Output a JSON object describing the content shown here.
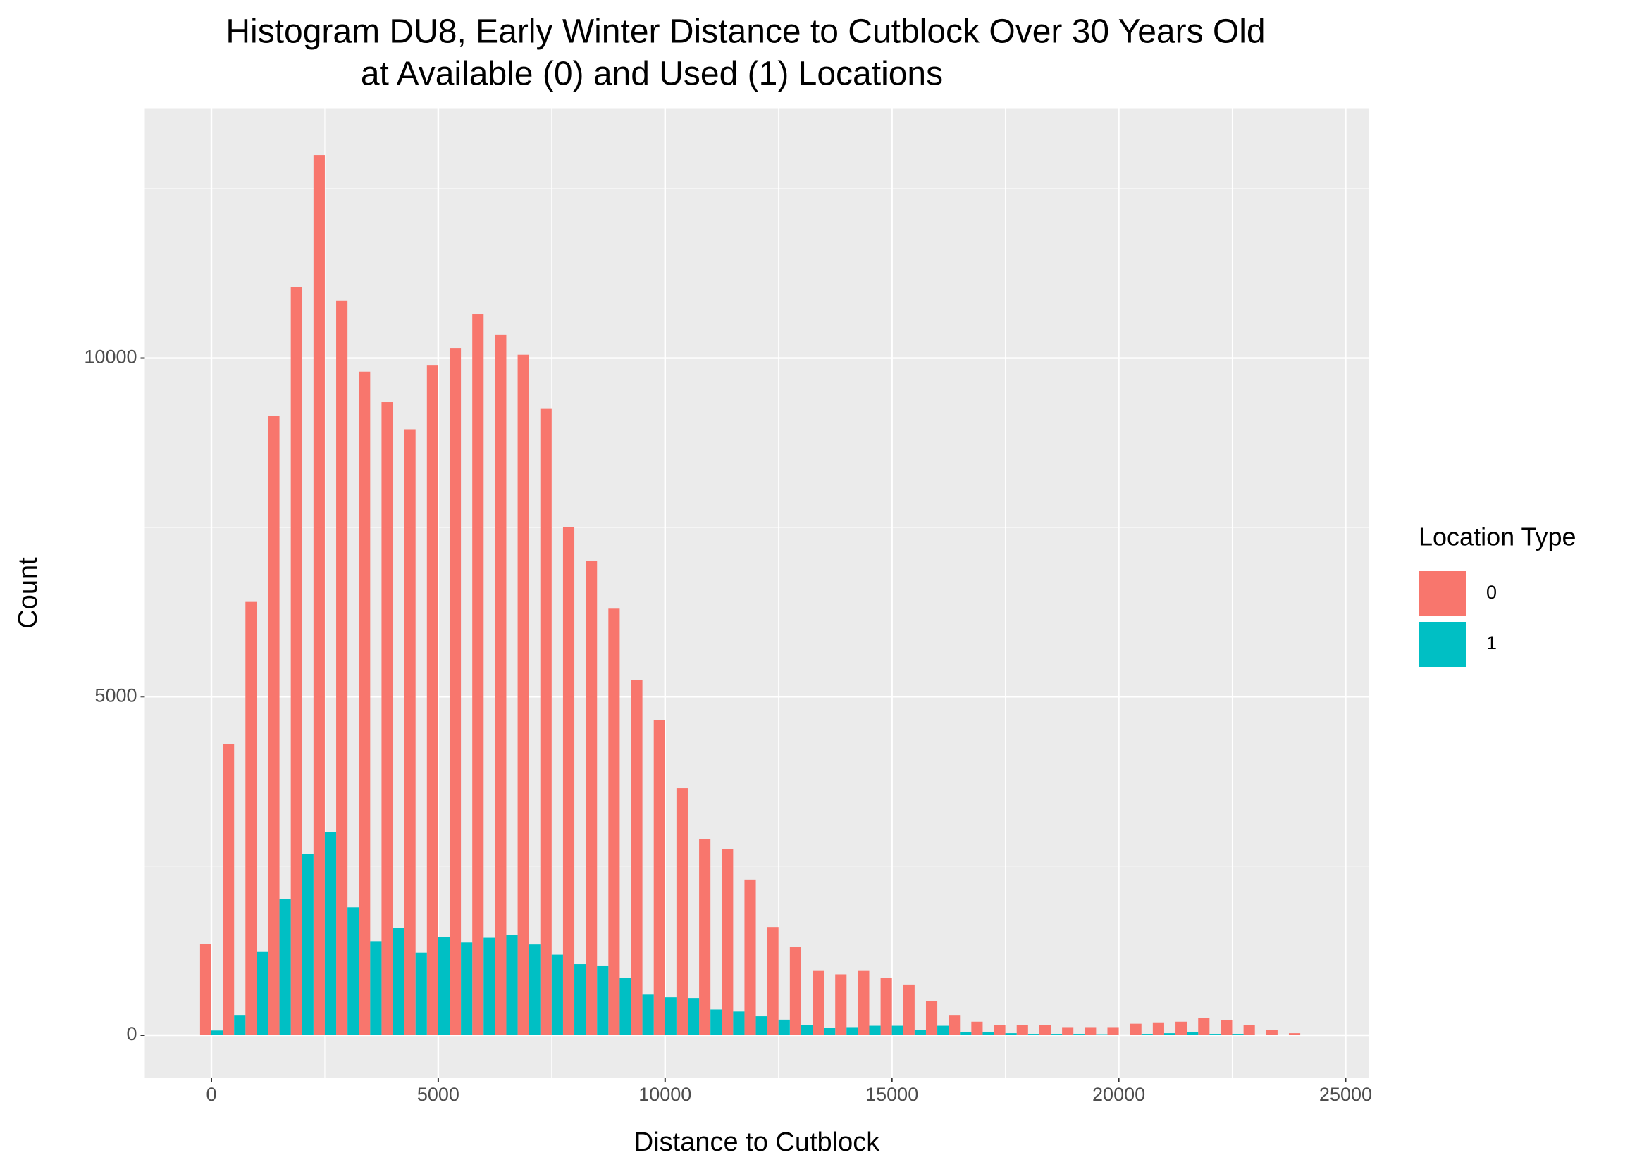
{
  "chart_data": {
    "type": "histogram",
    "title": [
      "Histogram DU8, Early Winter Distance to Cutblock Over 30 Years Old",
      "at Available (0) and Used (1) Locations"
    ],
    "x_label": "Distance to Cutblock",
    "y_label": "Count",
    "legend_title": "Location Type",
    "legend_position": "right",
    "grid": true,
    "bins": [
      -250,
      250,
      750,
      1250,
      1750,
      2250,
      2750,
      3250,
      3750,
      4250,
      4750,
      5250,
      5750,
      6250,
      6750,
      7250,
      7750,
      8250,
      8750,
      9250,
      9750,
      10250,
      10750,
      11250,
      11750,
      12250,
      12750,
      13250,
      13750,
      14250,
      14750,
      15250,
      15750,
      16250,
      16750,
      17250,
      17750,
      18250,
      18750,
      19250,
      19750,
      20250,
      20750,
      21250,
      21750,
      22250,
      22750,
      23250,
      23750,
      24250
    ],
    "series": [
      {
        "name": "0",
        "color": "#f8766d",
        "values": [
          1350,
          4300,
          6400,
          9150,
          11050,
          13000,
          10850,
          9800,
          9350,
          8950,
          9900,
          10150,
          10650,
          10350,
          10050,
          9250,
          7500,
          7000,
          6300,
          5250,
          4650,
          3650,
          2900,
          2750,
          2300,
          1600,
          1300,
          950,
          900,
          950,
          850,
          750,
          500,
          300,
          200,
          150,
          150,
          150,
          120,
          120,
          120,
          170,
          190,
          200,
          250,
          220,
          150,
          80,
          30
        ]
      },
      {
        "name": "1",
        "color": "#00bfc4",
        "values": [
          70,
          300,
          1230,
          2010,
          2680,
          3000,
          1890,
          1390,
          1590,
          1220,
          1450,
          1370,
          1440,
          1480,
          1340,
          1190,
          1050,
          1030,
          850,
          600,
          560,
          550,
          380,
          350,
          280,
          230,
          150,
          110,
          120,
          140,
          140,
          80,
          140,
          50,
          50,
          30,
          20,
          20,
          20,
          15,
          10,
          20,
          30,
          50,
          20,
          20,
          10,
          5,
          5
        ]
      }
    ],
    "xlim": [
      -1468,
      25513
    ],
    "ylim": [
      -624,
      13682
    ],
    "xticks": [
      0,
      5000,
      10000,
      15000,
      20000,
      25000
    ],
    "yticks": [
      0,
      5000,
      10000
    ]
  }
}
